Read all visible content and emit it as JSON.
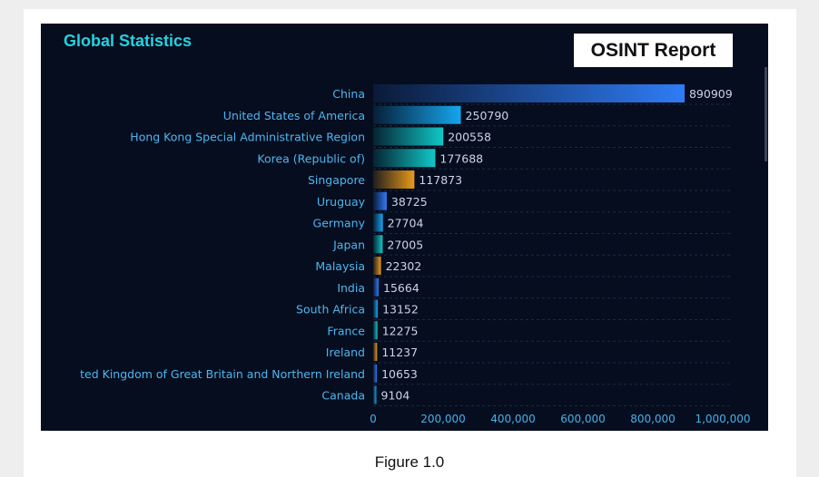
{
  "panel": {
    "title": "Global Statistics",
    "report_label": "OSINT Report"
  },
  "caption": "Figure 1.0",
  "chart_data": {
    "type": "bar",
    "orientation": "horizontal",
    "title": "Global Statistics",
    "categories": [
      "China",
      "United States of America",
      "Hong Kong Special Administrative Region",
      "Korea (Republic of)",
      "Singapore",
      "Uruguay",
      "Germany",
      "Japan",
      "Malaysia",
      "India",
      "South Africa",
      "France",
      "Ireland",
      "ted Kingdom of Great Britain and Northern Ireland",
      "Canada"
    ],
    "values": [
      890909,
      250790,
      200558,
      177688,
      117873,
      38725,
      27704,
      27005,
      22302,
      15664,
      13152,
      12275,
      11237,
      10653,
      9104
    ],
    "value_labels": [
      "890909",
      "250790",
      "200558",
      "177688",
      "117873",
      "38725",
      "27704",
      "27005",
      "22302",
      "15664",
      "13152",
      "12275",
      "11237",
      "10653",
      "9104"
    ],
    "xlim": [
      0,
      1000000
    ],
    "x_ticks": [
      0,
      200000,
      400000,
      600000,
      800000,
      1000000
    ],
    "x_tick_labels": [
      "0",
      "200,000",
      "400,000",
      "600,000",
      "800,000",
      "1,000,000"
    ],
    "grid": "dashed-horizontal",
    "colors": [
      "#2f7cf6",
      "#15a6ee",
      "#10c8c8",
      "#e99a1a"
    ],
    "background": "#050d1e",
    "label_color": "#4fb6f0",
    "tick_color": "#45b2ea"
  }
}
